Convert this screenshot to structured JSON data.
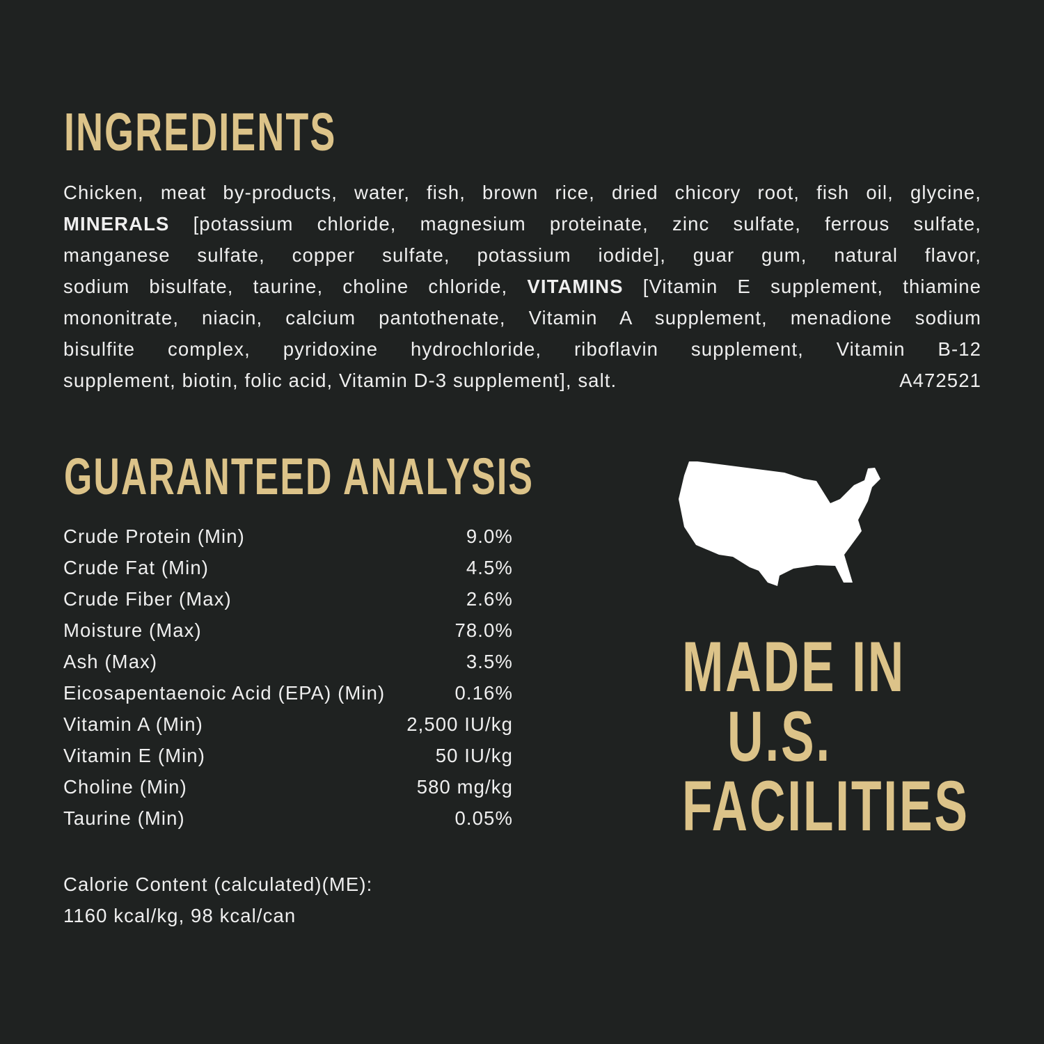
{
  "ingredients": {
    "title": "INGREDIENTS",
    "lines": [
      [
        "Chicken, meat by-products, water, fish, brown rice, dried chicory root, fish oil, glycine,"
      ],
      [
        "",
        "MINERALS",
        " [potassium chloride, magnesium proteinate, zinc sulfate, ferrous sulfate,"
      ],
      [
        "manganese sulfate, copper sulfate, potassium iodide], guar gum, natural flavor,"
      ],
      [
        "sodium bisulfate, taurine, choline chloride, ",
        "VITAMINS",
        " [Vitamin E supplement, thiamine"
      ],
      [
        "mononitrate, niacin, calcium pantothenate, Vitamin A supplement, menadione sodium"
      ],
      [
        "bisulfite complex, pyridoxine hydrochloride, riboflavin supplement, Vitamin B-12"
      ]
    ],
    "last_line": "supplement, biotin, folic acid, Vitamin D-3 supplement], salt.",
    "code": "A472521"
  },
  "analysis": {
    "title": "GUARANTEED ANALYSIS",
    "rows": [
      {
        "label": "Crude Protein (Min)",
        "value": "9.0%"
      },
      {
        "label": "Crude Fat (Min)",
        "value": "4.5%"
      },
      {
        "label": "Crude Fiber (Max)",
        "value": "2.6%"
      },
      {
        "label": "Moisture (Max)",
        "value": "78.0%"
      },
      {
        "label": "Ash (Max)",
        "value": "3.5%"
      },
      {
        "label": "Eicosapentaenoic Acid (EPA) (Min)",
        "value": "0.16%"
      },
      {
        "label": "Vitamin A (Min)",
        "value": "2,500 IU/kg"
      },
      {
        "label": "Vitamin E (Min)",
        "value": "50 IU/kg"
      },
      {
        "label": "Choline (Min)",
        "value": "580 mg/kg"
      },
      {
        "label": "Taurine (Min)",
        "value": "0.05%"
      }
    ],
    "calorie_label": "Calorie Content (calculated)(ME):",
    "calorie_value": "1160 kcal/kg, 98 kcal/can"
  },
  "badge": {
    "icon": "usa-map-icon",
    "lines": [
      "MADE IN",
      "U.S.",
      "FACILITIES"
    ]
  },
  "colors": {
    "background": "#1f2221",
    "accent": "#dcc389",
    "text": "#efefef"
  }
}
